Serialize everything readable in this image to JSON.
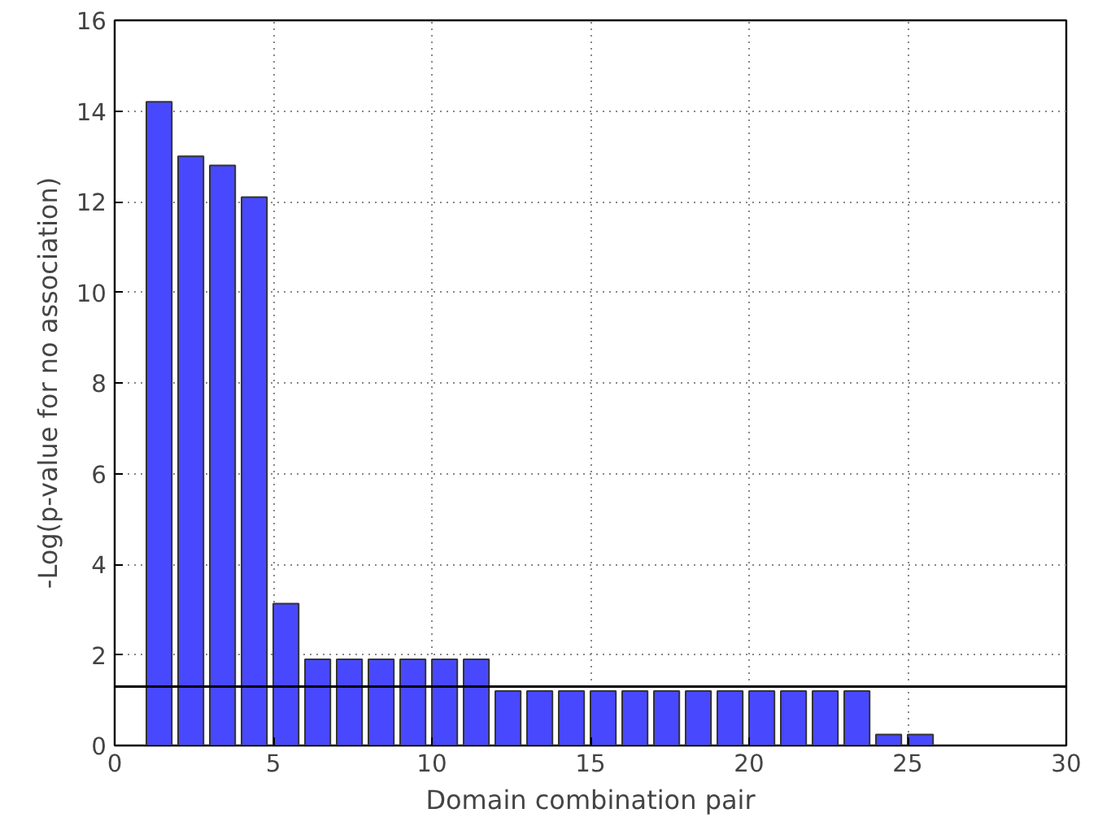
{
  "chart_data": {
    "type": "bar",
    "xlabel": "Domain combination pair",
    "ylabel": "-Log(p-value for no association)",
    "x": [
      1.4,
      2.4,
      3.4,
      4.4,
      5.4,
      6.4,
      7.4,
      8.4,
      9.4,
      10.4,
      11.4,
      12.4,
      13.4,
      14.4,
      15.4,
      16.4,
      17.4,
      18.4,
      19.4,
      20.4,
      21.4,
      22.4,
      23.4,
      24.4,
      25.4
    ],
    "values": [
      14.2,
      13.0,
      12.8,
      12.1,
      3.13,
      1.9,
      1.9,
      1.9,
      1.9,
      1.9,
      1.9,
      1.2,
      1.2,
      1.2,
      1.2,
      1.2,
      1.2,
      1.2,
      1.2,
      1.2,
      1.2,
      1.2,
      1.2,
      0.24,
      0.24
    ],
    "color": "#4848ff",
    "xlim": [
      0,
      30
    ],
    "xticks": [
      0,
      5,
      10,
      15,
      20,
      25,
      30
    ],
    "ylim": [
      0,
      16
    ],
    "yticks": [
      0,
      2,
      4,
      6,
      8,
      10,
      12,
      14,
      16
    ],
    "grid": true,
    "ref_lines": [
      {
        "axis": "y",
        "value": 1.3,
        "color": "#000000"
      }
    ]
  }
}
